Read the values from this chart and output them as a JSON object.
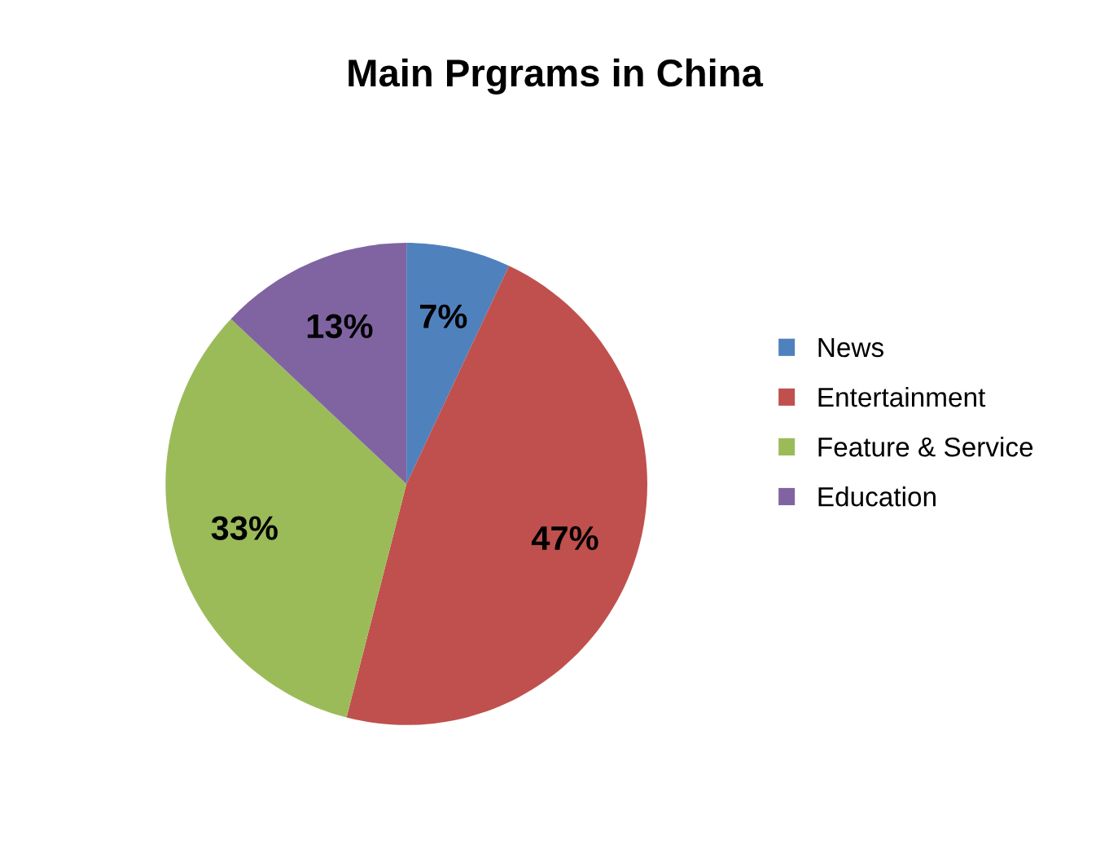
{
  "chart_data": {
    "type": "pie",
    "title": "Main Prgrams in China",
    "categories": [
      "News",
      "Entertainment",
      "Feature & Service",
      "Education"
    ],
    "values": [
      7,
      47,
      33,
      13
    ],
    "colors": [
      "#4f81bd",
      "#c0504d",
      "#9bbb59",
      "#8064a2"
    ],
    "value_labels": [
      "7%",
      "47%",
      "33%",
      "13%"
    ],
    "legend": "right"
  }
}
